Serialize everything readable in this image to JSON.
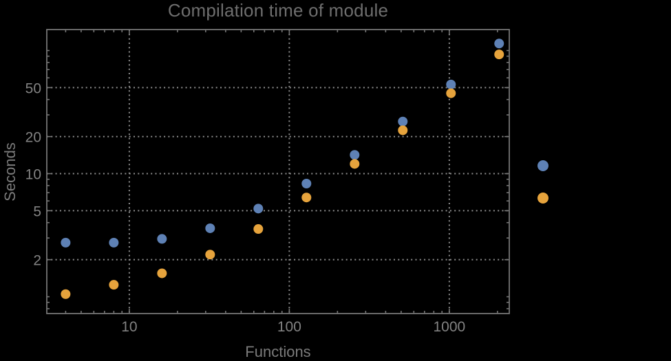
{
  "chart_data": {
    "type": "scatter",
    "title": "Compilation time of module",
    "xlabel": "Functions",
    "ylabel": "Seconds",
    "xscale": "log",
    "yscale": "log",
    "xlim": [
      3.05,
      2370
    ],
    "ylim": [
      0.73,
      148
    ],
    "grid": "dotted-major",
    "x_major_ticks": [
      10,
      100,
      1000
    ],
    "x_major_tick_labels": [
      "10",
      "100",
      "1000"
    ],
    "x_minor_ticks": [
      4,
      5,
      6,
      7,
      8,
      9,
      20,
      30,
      40,
      50,
      60,
      70,
      80,
      90,
      200,
      300,
      400,
      500,
      600,
      700,
      800,
      900,
      2000
    ],
    "y_major_ticks": [
      2,
      5,
      10,
      20,
      50
    ],
    "y_major_tick_labels": [
      "2",
      "5",
      "10",
      "20",
      "50"
    ],
    "y_minor_ticks": [
      0.8,
      0.9,
      1,
      3,
      4,
      6,
      7,
      8,
      9,
      30,
      40,
      60,
      70,
      80,
      90,
      100
    ],
    "x": [
      4,
      8,
      16,
      32,
      64,
      128,
      256,
      512,
      1024,
      2048
    ],
    "series": [
      {
        "name": "blue-series",
        "color": "#5e81b5",
        "values": [
          2.75,
          2.75,
          2.95,
          3.6,
          5.2,
          8.3,
          14.2,
          26.5,
          53,
          114
        ]
      },
      {
        "name": "orange-series",
        "color": "#e6a33c",
        "values": [
          1.05,
          1.25,
          1.55,
          2.2,
          3.55,
          6.4,
          12,
          22.5,
          45,
          93
        ]
      }
    ],
    "legend": {
      "position": "right-outside",
      "labels_visible": false,
      "markers": [
        {
          "name": "blue-series-marker",
          "color": "#5e81b5"
        },
        {
          "name": "orange-series-marker",
          "color": "#e6a33c"
        }
      ]
    }
  },
  "colors": {
    "background": "#000000",
    "title_text": "#6e6e6e",
    "axis_label_text": "#7b7b7b",
    "tick_label_text": "#828282",
    "frame": "#757575",
    "grid": "#8f8f8f"
  }
}
